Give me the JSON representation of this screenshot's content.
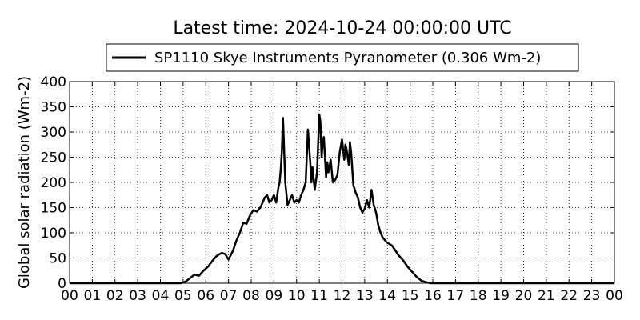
{
  "chart_data": {
    "type": "line",
    "title": "Latest time: 2024-10-24 00:00:00 UTC",
    "xlabel": "",
    "ylabel": "Global solar radiation (Wm-2)",
    "xlim": [
      0,
      24
    ],
    "ylim": [
      0,
      400
    ],
    "x_ticks": [
      "00",
      "01",
      "02",
      "03",
      "04",
      "05",
      "06",
      "07",
      "08",
      "09",
      "10",
      "11",
      "12",
      "13",
      "14",
      "15",
      "16",
      "17",
      "18",
      "19",
      "20",
      "21",
      "22",
      "23",
      "00"
    ],
    "y_ticks": [
      0,
      50,
      100,
      150,
      200,
      250,
      300,
      350,
      400
    ],
    "grid": true,
    "legend_position": "top-center",
    "series": [
      {
        "name": "SP1110 Skye Instruments Pyranometer (0.306 Wm-2)",
        "color": "#000000",
        "x": [
          0,
          4.9,
          5.1,
          5.3,
          5.5,
          5.7,
          5.9,
          6.1,
          6.3,
          6.5,
          6.7,
          6.85,
          7.0,
          7.2,
          7.35,
          7.5,
          7.65,
          7.8,
          7.95,
          8.1,
          8.25,
          8.4,
          8.5,
          8.6,
          8.7,
          8.8,
          8.9,
          9.0,
          9.1,
          9.2,
          9.25,
          9.3,
          9.35,
          9.4,
          9.5,
          9.6,
          9.7,
          9.8,
          9.9,
          10.0,
          10.1,
          10.2,
          10.3,
          10.4,
          10.5,
          10.6,
          10.65,
          10.7,
          10.8,
          10.9,
          11.0,
          11.05,
          11.1,
          11.15,
          11.2,
          11.3,
          11.35,
          11.4,
          11.5,
          11.6,
          11.7,
          11.8,
          11.9,
          12.0,
          12.1,
          12.15,
          12.2,
          12.3,
          12.35,
          12.4,
          12.5,
          12.6,
          12.7,
          12.8,
          12.9,
          13.0,
          13.1,
          13.2,
          13.3,
          13.4,
          13.5,
          13.6,
          13.7,
          13.8,
          14.0,
          14.2,
          14.35,
          14.5,
          14.7,
          14.9,
          15.1,
          15.3,
          15.5,
          15.7,
          15.9,
          16.1,
          16.3,
          24
        ],
        "values": [
          0,
          0,
          3,
          10,
          17,
          15,
          25,
          33,
          45,
          55,
          60,
          58,
          47,
          65,
          85,
          100,
          120,
          118,
          135,
          145,
          142,
          150,
          160,
          170,
          175,
          160,
          165,
          175,
          160,
          190,
          200,
          225,
          260,
          328,
          200,
          155,
          165,
          175,
          160,
          165,
          160,
          175,
          185,
          200,
          305,
          240,
          200,
          230,
          185,
          220,
          335,
          320,
          250,
          280,
          290,
          210,
          240,
          220,
          245,
          200,
          205,
          215,
          260,
          285,
          245,
          275,
          265,
          235,
          280,
          260,
          195,
          180,
          170,
          150,
          140,
          148,
          165,
          150,
          185,
          155,
          140,
          115,
          100,
          90,
          80,
          75,
          65,
          55,
          45,
          32,
          22,
          12,
          5,
          2,
          0,
          0,
          0,
          0
        ]
      }
    ]
  }
}
